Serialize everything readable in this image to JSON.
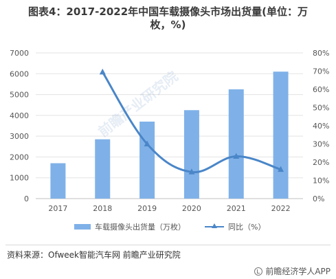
{
  "header": {
    "title_line1": "图表4：2017-2022年中国车载摄像头市场出货量(单位：万",
    "title_line2": "枚，%)"
  },
  "chart_data": {
    "type": "bar",
    "categories": [
      "2017",
      "2018",
      "2019",
      "2020",
      "2021",
      "2022"
    ],
    "series": [
      {
        "name": "车载摄像头出货量（万枚）",
        "kind": "bar",
        "axis": "left",
        "color": "#7fb1e8",
        "values": [
          1700,
          2850,
          3700,
          4250,
          5250,
          6100
        ]
      },
      {
        "name": "同比（%）",
        "kind": "line",
        "axis": "right",
        "color": "#4a86c8",
        "values": [
          null,
          69.5,
          30.0,
          14.6,
          23.2,
          16.0
        ]
      }
    ],
    "y_left": {
      "min": 0,
      "max": 7000,
      "ticks": [
        0,
        1000,
        2000,
        3000,
        4000,
        5000,
        6000,
        7000
      ]
    },
    "y_right": {
      "min": 0,
      "max": 80,
      "ticks": [
        "0%",
        "10%",
        "20%",
        "30%",
        "40%",
        "50%",
        "60%",
        "70%",
        "80%"
      ]
    },
    "grid": true,
    "legend_position": "bottom"
  },
  "legend": {
    "bar_label": "车载摄像头出货量（万枚）",
    "line_label": "同比（%）"
  },
  "footer": {
    "source": "资料来源：Ofweek智能汽车网 前瞻产业研究院",
    "brand": "前瞻经济学人APP"
  },
  "watermark": "前瞻产业研究院"
}
